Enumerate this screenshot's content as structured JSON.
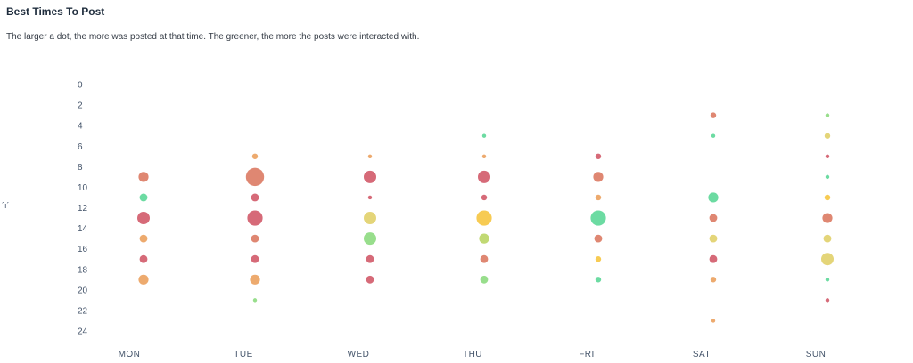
{
  "header": {
    "title": "Best Times To Post",
    "subtitle": "The larger a dot, the more was posted at that time. The greener, the more the posts were interacted with."
  },
  "chart_data": {
    "type": "scatter",
    "title": "Best Times To Post",
    "subtitle": "The larger a dot, the more was posted at that time. The greener, the more the posts were interacted with.",
    "xlabel": "",
    "ylabel": "´ı´",
    "categories": [
      "MON",
      "TUE",
      "WED",
      "THU",
      "FRI",
      "SAT",
      "SUN"
    ],
    "y_ticks": [
      0,
      2,
      4,
      6,
      8,
      10,
      12,
      14,
      16,
      18,
      20,
      22,
      24
    ],
    "ylim": [
      0,
      24
    ],
    "y_inverted": true,
    "grid": false,
    "legend": "none",
    "colors": {
      "red": "#d25d6c",
      "coral": "#dc7d66",
      "orange": "#eca362",
      "yellow": "#f6c744",
      "khaki": "#e2d16e",
      "lime": "#bcd668",
      "lightgreen": "#8fdb82",
      "green": "#5fd89a"
    },
    "points": [
      {
        "day": "MON",
        "hour": 9,
        "size": 3,
        "color": "coral"
      },
      {
        "day": "MON",
        "hour": 11,
        "size": 2,
        "color": "green"
      },
      {
        "day": "MON",
        "hour": 13,
        "size": 4,
        "color": "red"
      },
      {
        "day": "MON",
        "hour": 15,
        "size": 2,
        "color": "orange"
      },
      {
        "day": "MON",
        "hour": 17,
        "size": 2,
        "color": "red"
      },
      {
        "day": "MON",
        "hour": 19,
        "size": 3,
        "color": "orange"
      },
      {
        "day": "TUE",
        "hour": 7,
        "size": 1,
        "color": "orange"
      },
      {
        "day": "TUE",
        "hour": 9,
        "size": 6,
        "color": "coral"
      },
      {
        "day": "TUE",
        "hour": 11,
        "size": 2,
        "color": "red"
      },
      {
        "day": "TUE",
        "hour": 13,
        "size": 5,
        "color": "red"
      },
      {
        "day": "TUE",
        "hour": 15,
        "size": 2,
        "color": "coral"
      },
      {
        "day": "TUE",
        "hour": 17,
        "size": 2,
        "color": "red"
      },
      {
        "day": "TUE",
        "hour": 19,
        "size": 3,
        "color": "orange"
      },
      {
        "day": "TUE",
        "hour": 21,
        "size": 0,
        "color": "lightgreen"
      },
      {
        "day": "WED",
        "hour": 7,
        "size": 0,
        "color": "orange"
      },
      {
        "day": "WED",
        "hour": 9,
        "size": 4,
        "color": "red"
      },
      {
        "day": "WED",
        "hour": 11,
        "size": 0,
        "color": "red"
      },
      {
        "day": "WED",
        "hour": 13,
        "size": 4,
        "color": "khaki"
      },
      {
        "day": "WED",
        "hour": 15,
        "size": 4,
        "color": "lightgreen"
      },
      {
        "day": "WED",
        "hour": 17,
        "size": 2,
        "color": "red"
      },
      {
        "day": "WED",
        "hour": 19,
        "size": 2,
        "color": "red"
      },
      {
        "day": "THU",
        "hour": 5,
        "size": 0,
        "color": "green"
      },
      {
        "day": "THU",
        "hour": 7,
        "size": 0,
        "color": "orange"
      },
      {
        "day": "THU",
        "hour": 9,
        "size": 4,
        "color": "red"
      },
      {
        "day": "THU",
        "hour": 11,
        "size": 1,
        "color": "red"
      },
      {
        "day": "THU",
        "hour": 13,
        "size": 5,
        "color": "yellow"
      },
      {
        "day": "THU",
        "hour": 15,
        "size": 3,
        "color": "lime"
      },
      {
        "day": "THU",
        "hour": 17,
        "size": 2,
        "color": "coral"
      },
      {
        "day": "THU",
        "hour": 19,
        "size": 2,
        "color": "lightgreen"
      },
      {
        "day": "FRI",
        "hour": 7,
        "size": 1,
        "color": "red"
      },
      {
        "day": "FRI",
        "hour": 9,
        "size": 3,
        "color": "coral"
      },
      {
        "day": "FRI",
        "hour": 11,
        "size": 1,
        "color": "orange"
      },
      {
        "day": "FRI",
        "hour": 13,
        "size": 5,
        "color": "green"
      },
      {
        "day": "FRI",
        "hour": 15,
        "size": 2,
        "color": "coral"
      },
      {
        "day": "FRI",
        "hour": 17,
        "size": 1,
        "color": "yellow"
      },
      {
        "day": "FRI",
        "hour": 19,
        "size": 1,
        "color": "green"
      },
      {
        "day": "SAT",
        "hour": 3,
        "size": 1,
        "color": "coral"
      },
      {
        "day": "SAT",
        "hour": 5,
        "size": 0,
        "color": "green"
      },
      {
        "day": "SAT",
        "hour": 11,
        "size": 3,
        "color": "green"
      },
      {
        "day": "SAT",
        "hour": 13,
        "size": 2,
        "color": "coral"
      },
      {
        "day": "SAT",
        "hour": 15,
        "size": 2,
        "color": "khaki"
      },
      {
        "day": "SAT",
        "hour": 17,
        "size": 2,
        "color": "red"
      },
      {
        "day": "SAT",
        "hour": 19,
        "size": 1,
        "color": "orange"
      },
      {
        "day": "SAT",
        "hour": 23,
        "size": 0,
        "color": "orange"
      },
      {
        "day": "SUN",
        "hour": 3,
        "size": 0,
        "color": "lightgreen"
      },
      {
        "day": "SUN",
        "hour": 5,
        "size": 1,
        "color": "khaki"
      },
      {
        "day": "SUN",
        "hour": 7,
        "size": 0,
        "color": "red"
      },
      {
        "day": "SUN",
        "hour": 9,
        "size": 0,
        "color": "green"
      },
      {
        "day": "SUN",
        "hour": 11,
        "size": 1,
        "color": "yellow"
      },
      {
        "day": "SUN",
        "hour": 13,
        "size": 3,
        "color": "coral"
      },
      {
        "day": "SUN",
        "hour": 15,
        "size": 2,
        "color": "khaki"
      },
      {
        "day": "SUN",
        "hour": 17,
        "size": 4,
        "color": "khaki"
      },
      {
        "day": "SUN",
        "hour": 19,
        "size": 0,
        "color": "green"
      },
      {
        "day": "SUN",
        "hour": 21,
        "size": 0,
        "color": "red"
      }
    ]
  }
}
